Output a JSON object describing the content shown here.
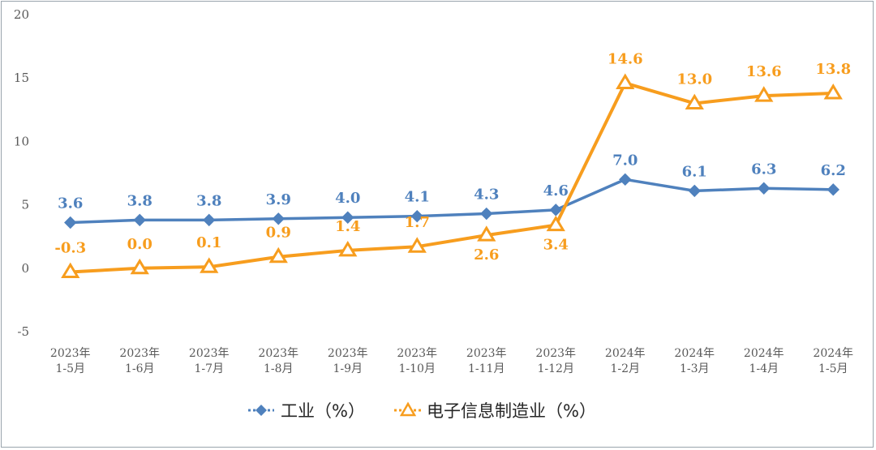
{
  "chart_data": {
    "type": "line",
    "categories": [
      [
        "2023年",
        "1-5月"
      ],
      [
        "2023年",
        "1-6月"
      ],
      [
        "2023年",
        "1-7月"
      ],
      [
        "2023年",
        "1-8月"
      ],
      [
        "2023年",
        "1-9月"
      ],
      [
        "2023年",
        "1-10月"
      ],
      [
        "2023年",
        "1-11月"
      ],
      [
        "2023年",
        "1-12月"
      ],
      [
        "2024年",
        "1-2月"
      ],
      [
        "2024年",
        "1-3月"
      ],
      [
        "2024年",
        "1-4月"
      ],
      [
        "2024年",
        "1-5月"
      ]
    ],
    "yticks": [
      20,
      15,
      10,
      5,
      0,
      -5
    ],
    "ylim": [
      -5,
      20
    ],
    "grid": false,
    "legend_position": "bottom",
    "series": [
      {
        "name": "工业（%）",
        "color": "#4f81bd",
        "marker": "diamond",
        "values": [
          3.6,
          3.8,
          3.8,
          3.9,
          4.0,
          4.1,
          4.3,
          4.6,
          7.0,
          6.1,
          6.3,
          6.2
        ],
        "labels": [
          "3.6",
          "3.8",
          "3.8",
          "3.9",
          "4.0",
          "4.1",
          "4.3",
          "4.6",
          "7.0",
          "6.1",
          "6.3",
          "6.2"
        ]
      },
      {
        "name": "电子信息制造业（%）",
        "color": "#f79d1e",
        "marker": "triangle-open",
        "values": [
          -0.3,
          0.0,
          0.1,
          0.9,
          1.4,
          1.7,
          2.6,
          3.4,
          14.6,
          13.0,
          13.6,
          13.8
        ],
        "labels": [
          "-0.3",
          "0.0",
          "0.1",
          "0.9",
          "1.4",
          "1.7",
          "2.6",
          "3.4",
          "14.6",
          "13.0",
          "13.6",
          "13.8"
        ]
      }
    ]
  }
}
